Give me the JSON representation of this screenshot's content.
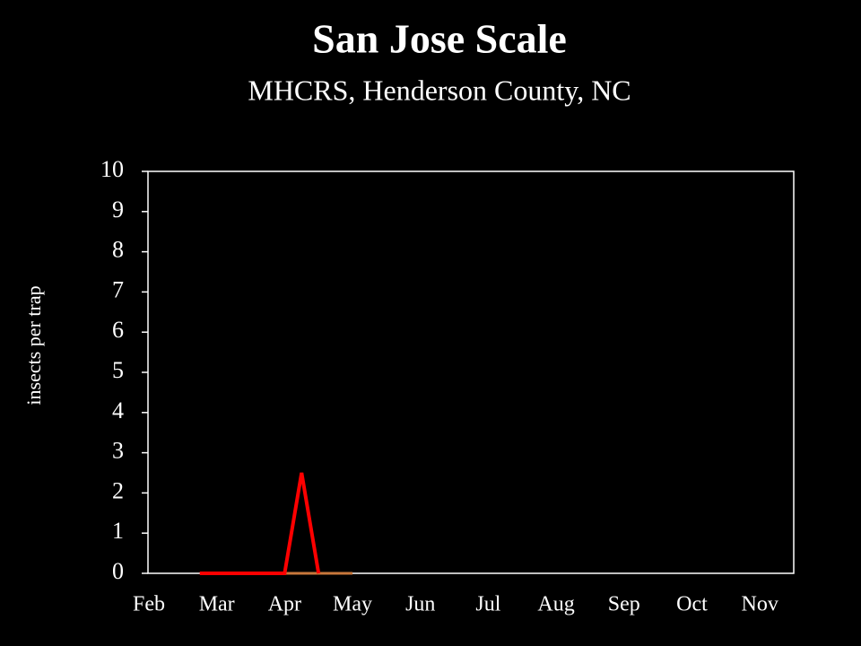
{
  "chart_data": {
    "type": "line",
    "title": "San Jose Scale",
    "subtitle": "MHCRS, Henderson County, NC",
    "y_label": "insects per trap",
    "categories": [
      "Feb",
      null,
      null,
      null,
      "Mar",
      null,
      null,
      null,
      "Apr",
      null,
      null,
      null,
      "May",
      null,
      null,
      null,
      "Jun",
      null,
      null,
      null,
      "Jul",
      null,
      null,
      null,
      "Aug",
      null,
      null,
      null,
      "Sep",
      null,
      null,
      null,
      "Oct",
      null,
      null,
      null,
      "Nov",
      null,
      null
    ],
    "series": [
      {
        "color": "#ff0000",
        "values": [
          null,
          null,
          null,
          0,
          0,
          0,
          0,
          0,
          0,
          2.5,
          0,
          null,
          null,
          null,
          null,
          null,
          null,
          null,
          null,
          null,
          null,
          null,
          null,
          null,
          null,
          null,
          null,
          null,
          null,
          null,
          null,
          null,
          null,
          null,
          null,
          null,
          null,
          null,
          null
        ]
      },
      {
        "color": "#c8783c",
        "values": [
          null,
          null,
          null,
          null,
          null,
          null,
          null,
          null,
          0,
          0,
          0,
          0,
          0,
          null,
          null,
          null,
          null,
          null,
          null,
          null,
          null,
          null,
          null,
          null,
          null,
          null,
          null,
          null,
          null,
          null,
          null,
          null,
          null,
          null,
          null,
          null,
          null,
          null,
          null
        ]
      }
    ],
    "ylim": [
      0,
      10
    ],
    "yticks": [
      0,
      1,
      2,
      3,
      4,
      5,
      6,
      7,
      8,
      9,
      10
    ]
  }
}
